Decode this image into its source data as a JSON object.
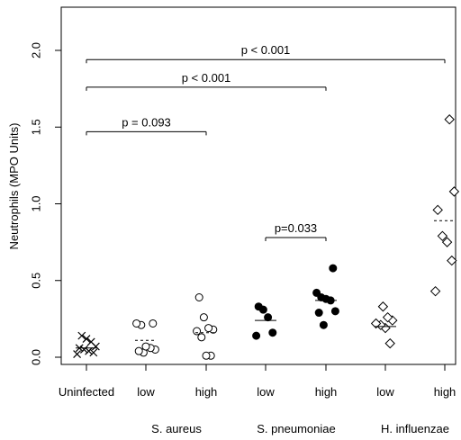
{
  "chart_data": {
    "type": "scatter",
    "title": "",
    "ylabel": "Neutrophils (MPO Units)",
    "xlabel": "",
    "ylim": [
      0,
      2.0
    ],
    "yticks": [
      "0.0",
      "0.5",
      "1.0",
      "1.5",
      "2.0"
    ],
    "categories": [
      "Uninfected",
      "low",
      "high",
      "low",
      "high",
      "low",
      "high"
    ],
    "groups": [
      "S. aureus",
      "S. pneumoniae",
      "H. influenzae"
    ],
    "grid": false,
    "series": [
      {
        "category_index": 0,
        "marker": "cross",
        "filled": false,
        "mean": 0.06,
        "mean_style": "solid",
        "points": [
          0.02,
          0.03,
          0.04,
          0.05,
          0.06,
          0.07,
          0.1,
          0.12,
          0.14
        ]
      },
      {
        "category_index": 1,
        "marker": "circle",
        "filled": false,
        "mean": 0.11,
        "mean_style": "dashed",
        "points": [
          0.03,
          0.04,
          0.05,
          0.06,
          0.07,
          0.21,
          0.22,
          0.22
        ]
      },
      {
        "category_index": 2,
        "marker": "circle",
        "filled": false,
        "mean": 0.16,
        "mean_style": "dashed",
        "points": [
          0.01,
          0.01,
          0.13,
          0.17,
          0.18,
          0.19,
          0.26,
          0.39
        ]
      },
      {
        "category_index": 3,
        "marker": "circle",
        "filled": true,
        "mean": 0.24,
        "mean_style": "solid",
        "points": [
          0.14,
          0.16,
          0.26,
          0.31,
          0.33
        ]
      },
      {
        "category_index": 4,
        "marker": "circle",
        "filled": true,
        "mean": 0.37,
        "mean_style": "solid",
        "points": [
          0.21,
          0.29,
          0.3,
          0.37,
          0.38,
          0.39,
          0.42,
          0.58
        ]
      },
      {
        "category_index": 5,
        "marker": "diamond",
        "filled": false,
        "mean": 0.2,
        "mean_style": "solid",
        "points": [
          0.09,
          0.19,
          0.21,
          0.22,
          0.24,
          0.26,
          0.33
        ]
      },
      {
        "category_index": 6,
        "marker": "diamond",
        "filled": false,
        "mean": 0.89,
        "mean_style": "dashed",
        "points": [
          0.43,
          0.63,
          0.75,
          0.79,
          0.96,
          1.08,
          1.55
        ]
      }
    ],
    "annotations": [
      {
        "label": "p < 0.001",
        "from": 0,
        "to": 6,
        "y": 1.94
      },
      {
        "label": "p < 0.001",
        "from": 0,
        "to": 4,
        "y": 1.76
      },
      {
        "label": "p = 0.093",
        "from": 0,
        "to": 2,
        "y": 1.47
      },
      {
        "label": "p=0.033",
        "from": 3,
        "to": 4,
        "y": 0.78
      }
    ]
  }
}
